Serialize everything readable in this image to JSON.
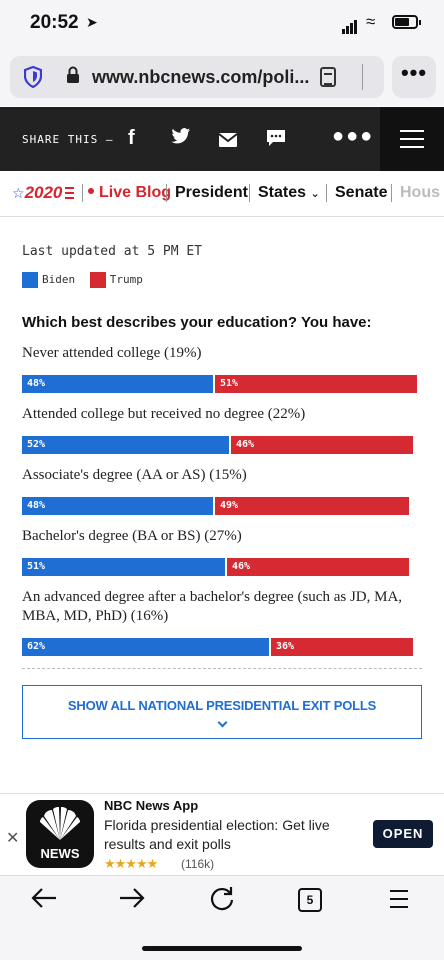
{
  "status": {
    "time": "20:52"
  },
  "browser": {
    "url": "www.nbcnews.com/poli..."
  },
  "share": {
    "label": "SHARE THIS —",
    "icons": [
      "facebook-icon",
      "twitter-icon",
      "mail-icon",
      "sms-icon",
      "more-icon",
      "menu-icon"
    ]
  },
  "nav": {
    "logo": "2020",
    "live": "Live Blog",
    "items": [
      "President",
      "States",
      "Senate",
      "Hous"
    ]
  },
  "content": {
    "updated": "Last updated at 5 PM ET",
    "legend": [
      {
        "name": "Biden",
        "color": "#1f6ed4"
      },
      {
        "name": "Trump",
        "color": "#d62a33"
      }
    ],
    "question": "Which best describes your education? You have:",
    "rows": [
      {
        "label": "Never attended college (19%)",
        "biden": 48,
        "trump": 51
      },
      {
        "label": "Attended college but received no degree (22%)",
        "biden": 52,
        "trump": 46
      },
      {
        "label": "Associate's degree (AA or AS) (15%)",
        "biden": 48,
        "trump": 49
      },
      {
        "label": "Bachelor's degree (BA or BS) (27%)",
        "biden": 51,
        "trump": 46
      },
      {
        "label": "An advanced degree after a bachelor's degree (such as JD, MA, MBA, MD, PhD) (16%)",
        "biden": 62,
        "trump": 36
      }
    ],
    "show_all": "SHOW ALL NATIONAL PRESIDENTIAL EXIT POLLS"
  },
  "banner": {
    "app_name": "NBC News App",
    "description": "Florida presidential election: Get live results and exit polls",
    "stars": "★★★★★",
    "reviews": "(116k)",
    "icon_text": "NEWS",
    "open": "OPEN"
  },
  "toolbar": {
    "tab_count": "5"
  }
}
